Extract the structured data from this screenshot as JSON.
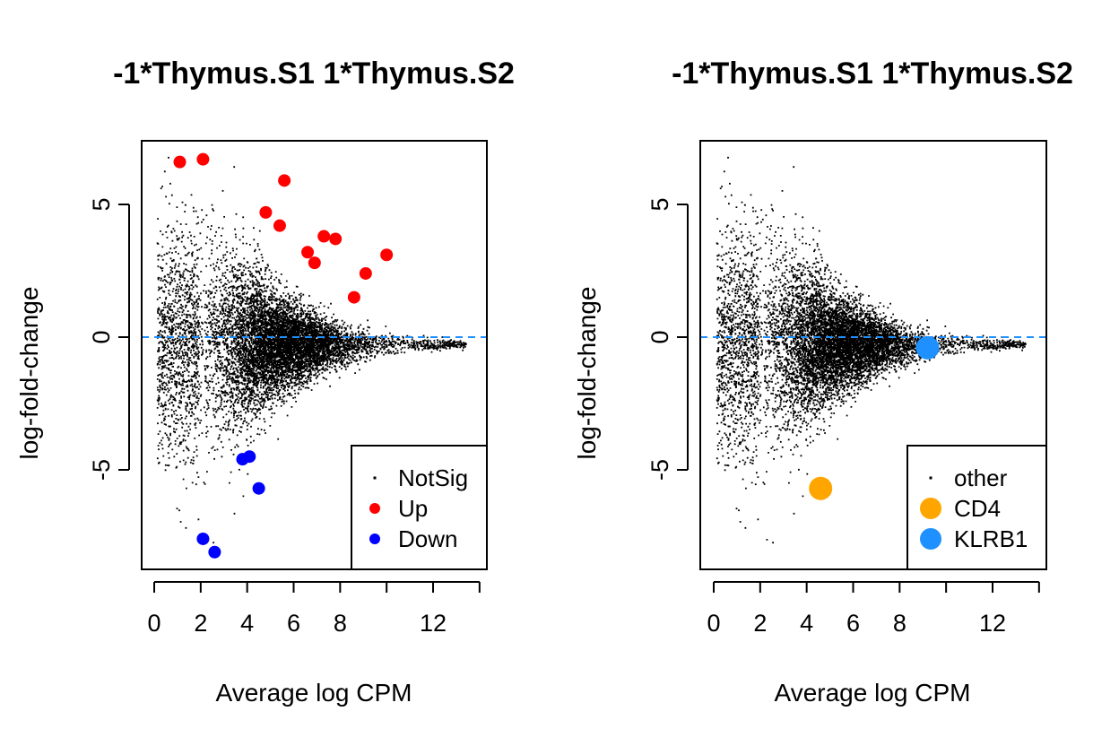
{
  "chart_data": [
    {
      "type": "scatter",
      "title": "-1*Thymus.S1 1*Thymus.S2",
      "xlabel": "Average log CPM",
      "ylabel": "log-fold-change",
      "x_ticks": [
        0,
        2,
        4,
        6,
        8,
        10,
        12,
        14
      ],
      "x_tick_labels": [
        "0",
        "2",
        "4",
        "6",
        "8",
        "",
        "12",
        ""
      ],
      "y_ticks": [
        -5,
        0,
        5
      ],
      "y_tick_labels": [
        "-5",
        "0",
        "5"
      ],
      "xlim": [
        -0.5,
        14.2
      ],
      "ylim": [
        -8.7,
        7.3
      ],
      "reference_line": {
        "y": 0,
        "style": "dashed",
        "color": "#1E90FF"
      },
      "legend_position": "bottom-right",
      "legend": [
        {
          "label": "NotSig",
          "color": "#000000",
          "marker": "small-dot"
        },
        {
          "label": "Up",
          "color": "#FF0000",
          "marker": "filled-circle"
        },
        {
          "label": "Down",
          "color": "#0000FF",
          "marker": "filled-circle"
        }
      ],
      "background_series": {
        "name": "NotSig",
        "color": "#000000",
        "approx_count": 12000,
        "description": "dense cloud of non-significant genes"
      },
      "series": [
        {
          "name": "Up",
          "color": "#FF0000",
          "x": [
            1.1,
            2.1,
            5.6,
            4.8,
            5.4,
            7.3,
            7.8,
            6.6,
            6.9,
            10.0,
            9.1,
            8.6
          ],
          "y": [
            6.6,
            6.7,
            5.9,
            4.7,
            4.2,
            3.8,
            3.7,
            3.2,
            2.8,
            3.1,
            2.4,
            1.5
          ]
        },
        {
          "name": "Down",
          "color": "#0000FF",
          "x": [
            4.1,
            3.8,
            4.5,
            2.1,
            2.6
          ],
          "y": [
            -4.5,
            -4.6,
            -5.7,
            -7.6,
            -8.1
          ]
        }
      ]
    },
    {
      "type": "scatter",
      "title": "-1*Thymus.S1 1*Thymus.S2",
      "xlabel": "Average log CPM",
      "ylabel": "log-fold-change",
      "x_ticks": [
        0,
        2,
        4,
        6,
        8,
        10,
        12,
        14
      ],
      "x_tick_labels": [
        "0",
        "2",
        "4",
        "6",
        "8",
        "",
        "12",
        ""
      ],
      "y_ticks": [
        -5,
        0,
        5
      ],
      "y_tick_labels": [
        "-5",
        "0",
        "5"
      ],
      "xlim": [
        -0.5,
        14.2
      ],
      "ylim": [
        -8.7,
        7.3
      ],
      "reference_line": {
        "y": 0,
        "style": "dashed",
        "color": "#1E90FF"
      },
      "legend_position": "bottom-right",
      "legend": [
        {
          "label": "other",
          "color": "#000000",
          "marker": "small-dot"
        },
        {
          "label": "CD4",
          "color": "#FFA500",
          "marker": "filled-circle"
        },
        {
          "label": "KLRB1",
          "color": "#1E90FF",
          "marker": "filled-circle"
        }
      ],
      "background_series": {
        "name": "other",
        "color": "#000000",
        "approx_count": 12000,
        "description": "dense cloud of all other genes"
      },
      "series": [
        {
          "name": "CD4",
          "color": "#FFA500",
          "x": [
            4.6
          ],
          "y": [
            -5.7
          ]
        },
        {
          "name": "KLRB1",
          "color": "#1E90FF",
          "x": [
            9.2
          ],
          "y": [
            -0.4
          ]
        }
      ]
    }
  ]
}
